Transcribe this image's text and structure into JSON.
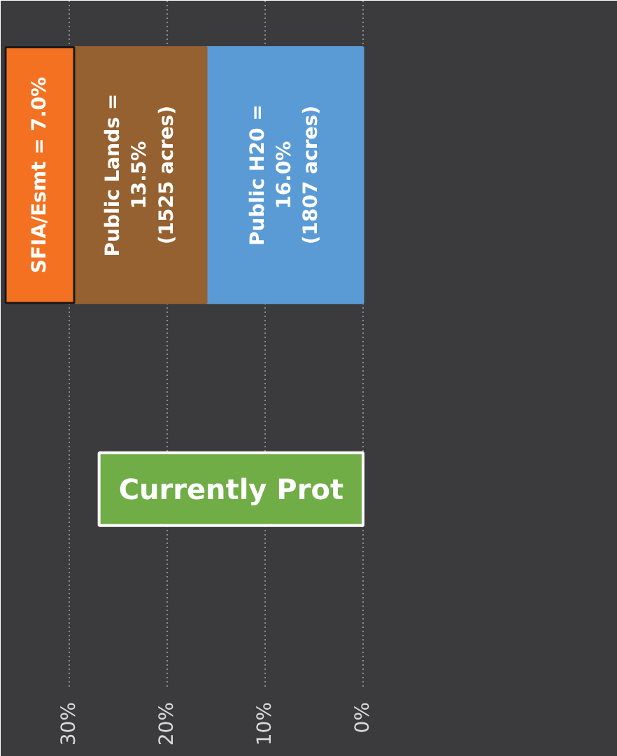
{
  "chart_data": {
    "type": "bar",
    "orientation": "horizontal",
    "stacked": true,
    "categories": [
      null
    ],
    "series": [
      {
        "color": "#5b9bd5",
        "values": [
          16.0
        ],
        "value_labels": [
          "Public H20 =\n16.0%\n(1807 acres)"
        ]
      },
      {
        "color": "#956130",
        "values": [
          13.5
        ],
        "value_labels": [
          "Public Lands =\n13.5%\n(1525 acres)"
        ]
      },
      {
        "color": "#f37121",
        "values": [
          7.0
        ],
        "value_labels": [
          "SFIA/Esmt = 7.0%"
        ]
      }
    ],
    "xlim": [
      37,
      -26
    ],
    "xticks": [
      {
        "value": 0,
        "label": "0%"
      },
      {
        "value": 10,
        "label": "10%"
      },
      {
        "value": 20,
        "label": "20%"
      },
      {
        "value": 30,
        "label": "30%"
      }
    ],
    "grid": "x",
    "annotations": [
      "Currently Prot"
    ]
  }
}
